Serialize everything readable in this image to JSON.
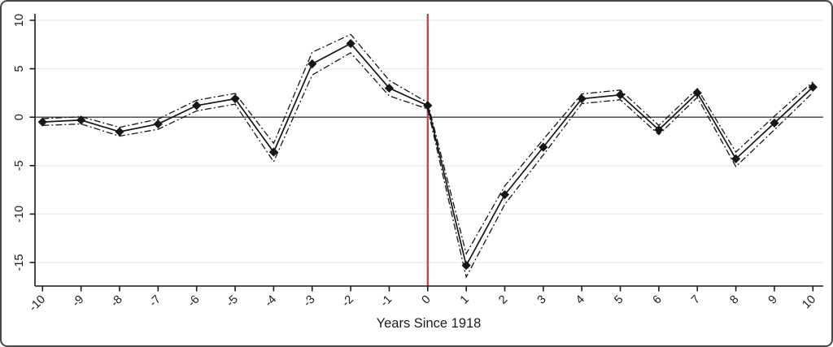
{
  "figure": {
    "background": "#ffffff",
    "border_color": "#474747"
  },
  "chart_data": {
    "type": "line",
    "title": "",
    "xlabel": "Years Since 1918",
    "ylabel": "",
    "x": [
      -10,
      -9,
      -8,
      -7,
      -6,
      -5,
      -4,
      -3,
      -2,
      -1,
      0,
      1,
      2,
      3,
      4,
      5,
      6,
      7,
      8,
      9,
      10
    ],
    "series": [
      {
        "name": "point-estimate",
        "style": "solid-line-diamond-markers",
        "values": [
          -0.5,
          -0.3,
          -1.5,
          -0.7,
          1.2,
          1.9,
          -3.6,
          5.5,
          7.6,
          3.0,
          1.2,
          -15.3,
          -8.0,
          -3.1,
          1.9,
          2.3,
          -1.3,
          2.5,
          -4.3,
          -0.6,
          3.1
        ]
      },
      {
        "name": "ci-upper",
        "style": "dash-dot",
        "values": [
          -0.15,
          0.05,
          -1.05,
          -0.2,
          1.75,
          2.45,
          -2.7,
          6.7,
          8.55,
          3.8,
          1.5,
          -14.1,
          -7.1,
          -2.3,
          2.4,
          2.8,
          -0.85,
          2.95,
          -3.6,
          0.1,
          3.65
        ]
      },
      {
        "name": "ci-lower",
        "style": "dash-dot",
        "values": [
          -0.85,
          -0.7,
          -1.95,
          -1.25,
          0.65,
          1.35,
          -4.6,
          4.35,
          6.65,
          2.2,
          0.85,
          -16.5,
          -9.0,
          -3.9,
          1.4,
          1.8,
          -1.8,
          2.05,
          -5.1,
          -1.3,
          2.55
        ]
      }
    ],
    "x_ticks": [
      -10,
      -9,
      -8,
      -7,
      -6,
      -5,
      -4,
      -3,
      -2,
      -1,
      0,
      1,
      2,
      3,
      4,
      5,
      6,
      7,
      8,
      9,
      10
    ],
    "y_ticks": [
      10,
      5,
      0,
      -5,
      -10,
      -15
    ],
    "ylim": [
      -17.4,
      10.75
    ],
    "xlim": [
      -10.2,
      10.3
    ],
    "grid": true,
    "legend": "none",
    "reference_lines": {
      "vline": {
        "x": 0,
        "color": "#b65050"
      },
      "hline": {
        "y": 0,
        "color": "#3f3f3f"
      }
    },
    "colors": {
      "line": "#161616",
      "marker": "#161616",
      "ci": "#161616",
      "grid": "#ebebeb",
      "axis": "#1a1a1a",
      "text": "#1a1a1a"
    }
  }
}
